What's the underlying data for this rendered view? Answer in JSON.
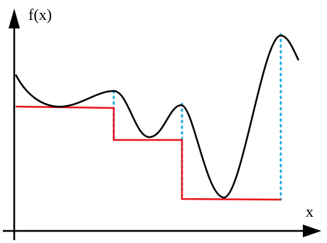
{
  "labels": {
    "y_axis": "f(x)",
    "x_axis": "x"
  }
}
